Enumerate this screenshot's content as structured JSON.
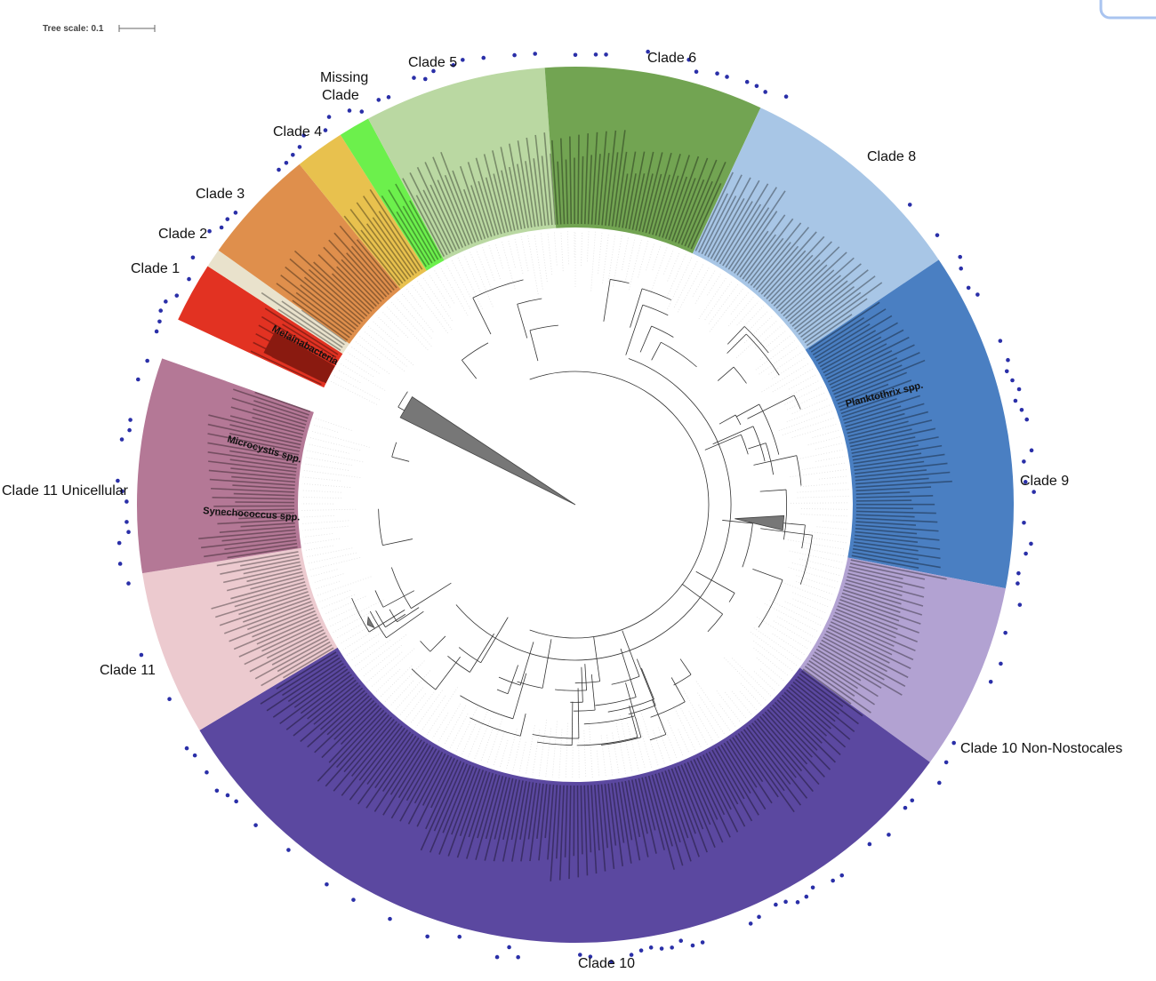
{
  "tree_scale": "Tree scale: 0.1",
  "clades": [
    "Clade 1",
    "Clade 2",
    "Clade 3",
    "Clade 4",
    "Missing Clade",
    "Clade 5",
    "Clade 6",
    "Clade 8",
    "Clade 9",
    "Clade 10 Non-Nostocales",
    "Clade 10",
    "Clade 11",
    "Clade 11 Unicellular"
  ],
  "groups": [
    "Melainabacteria",
    "Microcystis spp.",
    "Synechococcus spp.",
    "Planktothrix spp."
  ]
}
